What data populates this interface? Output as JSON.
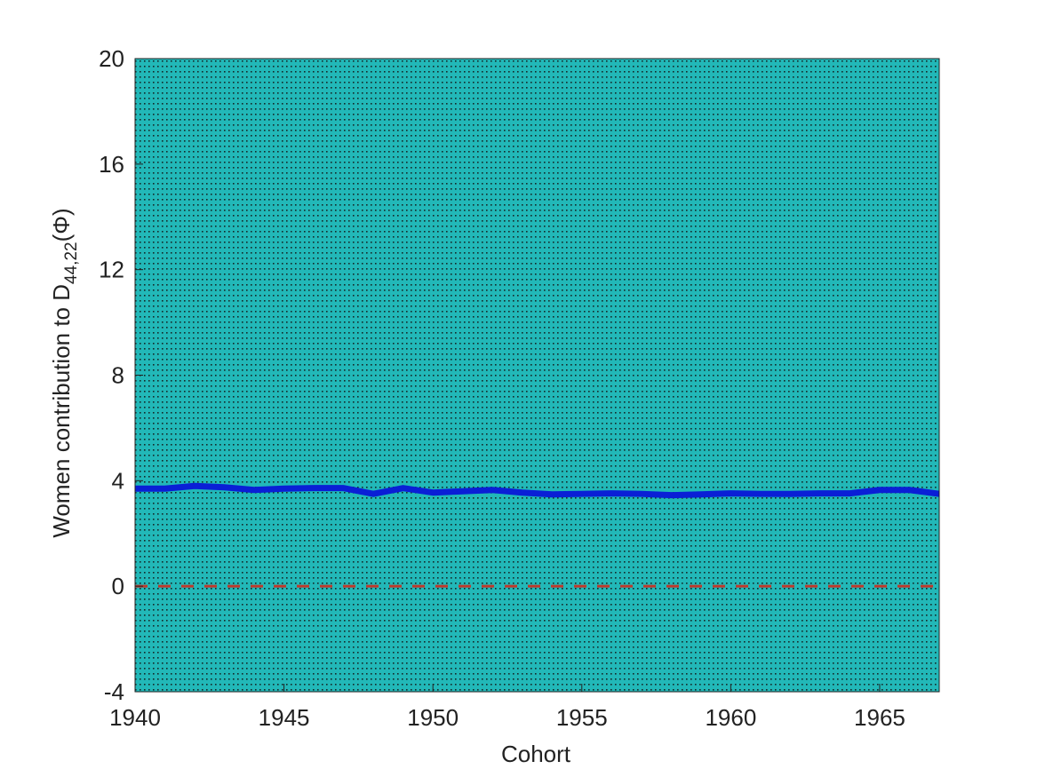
{
  "chart_data": {
    "type": "line",
    "x_label": "Cohort",
    "y_label": {
      "text": "Women contribution to D",
      "subscript": "44,22",
      "suffix": "(Φ)"
    },
    "x": [
      1940,
      1941,
      1942,
      1943,
      1944,
      1945,
      1946,
      1947,
      1948,
      1949,
      1950,
      1951,
      1952,
      1953,
      1954,
      1955,
      1956,
      1957,
      1958,
      1959,
      1960,
      1961,
      1962,
      1963,
      1964,
      1965,
      1966,
      1967
    ],
    "series": [
      {
        "color": "#0a1fd6",
        "values": [
          3.7,
          3.7,
          3.8,
          3.75,
          3.65,
          3.7,
          3.72,
          3.72,
          3.5,
          3.72,
          3.55,
          3.6,
          3.65,
          3.55,
          3.48,
          3.5,
          3.52,
          3.5,
          3.45,
          3.48,
          3.52,
          3.5,
          3.5,
          3.52,
          3.52,
          3.65,
          3.65,
          3.5
        ]
      }
    ],
    "reference_line": {
      "value": 0,
      "color": "#c0392b"
    },
    "xlim": [
      1940,
      1967
    ],
    "xticks": [
      1940,
      1945,
      1950,
      1955,
      1960,
      1965
    ],
    "ylim": [
      -4,
      20
    ],
    "yticks": [
      -4,
      0,
      4,
      8,
      12,
      16,
      20
    ],
    "background_color": "#22b8b8"
  }
}
